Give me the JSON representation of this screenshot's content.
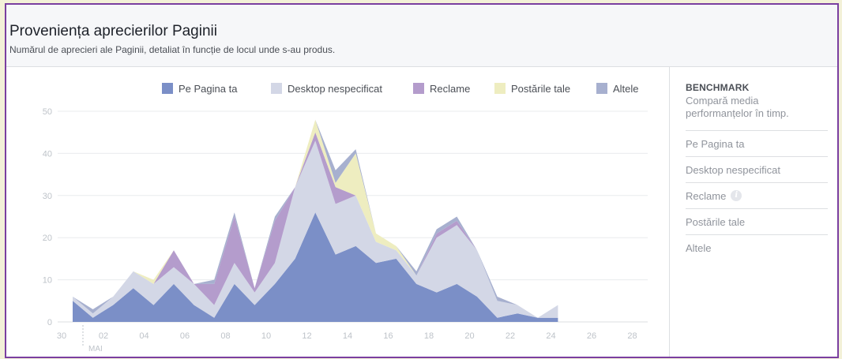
{
  "header": {
    "title": "Proveniența aprecierilor Paginii",
    "subtitle": "Numărul de aprecieri ale Paginii, detaliat în funcție de locul unde s-au produs."
  },
  "benchmark": {
    "title": "BENCHMARK",
    "description": "Compară media performanțelor în timp.",
    "items": [
      {
        "label": "Pe Pagina ta",
        "info": false
      },
      {
        "label": "Desktop nespecificat",
        "info": false
      },
      {
        "label": "Reclame",
        "info": true,
        "info_icon": "info-icon"
      },
      {
        "label": "Postările tale",
        "info": false
      },
      {
        "label": "Altele",
        "info": false
      }
    ]
  },
  "chart_data": {
    "type": "area",
    "stacked": true,
    "title": "Proveniența aprecierilor Paginii",
    "x_tick_labels": [
      "30",
      "02",
      "04",
      "06",
      "08",
      "10",
      "12",
      "14",
      "16",
      "18",
      "20",
      "22",
      "24",
      "26",
      "28"
    ],
    "x_month_label": "MAI",
    "y_ticks": [
      0,
      10,
      20,
      30,
      40,
      50
    ],
    "ylim": [
      0,
      50
    ],
    "grid": "horizontal",
    "legend_position": "top",
    "x": [
      "30",
      "01",
      "02",
      "03",
      "04",
      "05",
      "06",
      "07",
      "08",
      "09",
      "10",
      "11",
      "12",
      "13",
      "14",
      "15",
      "16",
      "17",
      "18",
      "19",
      "20",
      "21",
      "22",
      "23",
      "24"
    ],
    "series": [
      {
        "name": "Pe Pagina ta",
        "color": "#7b8fc7",
        "values": [
          5,
          1,
          4,
          8,
          4,
          9,
          4,
          1,
          9,
          4,
          9,
          15,
          26,
          16,
          18,
          14,
          15,
          9,
          7,
          9,
          6,
          1,
          2,
          1,
          1
        ]
      },
      {
        "name": "Desktop nespecificat",
        "color": "#d3d7e6",
        "values": [
          1,
          1,
          2,
          4,
          5,
          4,
          5,
          3,
          5,
          3,
          5,
          17,
          17,
          12,
          12,
          5,
          2,
          2,
          13,
          14,
          11,
          4,
          2,
          0,
          3
        ]
      },
      {
        "name": "Reclame",
        "color": "#b49ccc",
        "values": [
          0,
          0,
          0,
          0,
          0,
          4,
          0,
          5,
          11,
          1,
          10,
          0,
          2,
          4,
          0,
          0,
          0,
          0,
          1,
          1,
          0,
          0,
          0,
          0,
          0
        ]
      },
      {
        "name": "Postările tale",
        "color": "#eeedc0",
        "values": [
          0,
          0,
          0,
          0,
          1,
          0,
          0,
          0,
          0,
          0,
          0,
          0,
          3,
          1,
          10,
          2,
          1,
          0,
          0,
          0,
          0,
          0,
          0,
          0,
          0
        ]
      },
      {
        "name": "Altele",
        "color": "#a7b0cf",
        "values": [
          0,
          1,
          0,
          0,
          0,
          0,
          0,
          1,
          1,
          0,
          1,
          0,
          0,
          3,
          1,
          0,
          0,
          1,
          1,
          1,
          0,
          1,
          0,
          0,
          0
        ]
      }
    ]
  }
}
